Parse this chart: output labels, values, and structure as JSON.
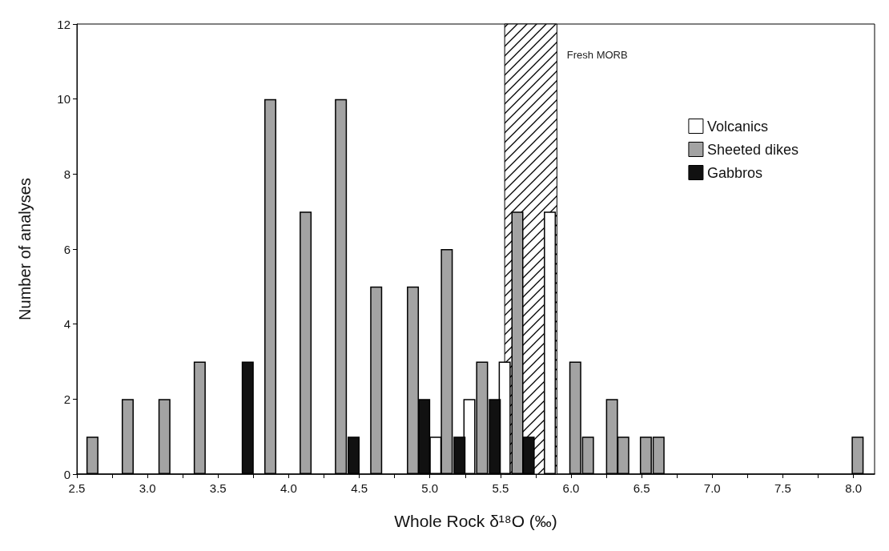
{
  "chart_data": {
    "type": "bar",
    "xlabel": "Whole Rock δ¹⁸O (‰)",
    "ylabel": "Number of analyses",
    "series": [
      {
        "name": "Volcanics",
        "color": "#ffffff",
        "x": [
          5.04,
          5.28,
          5.53,
          5.85
        ],
        "values": [
          1,
          2,
          3,
          7
        ]
      },
      {
        "name": "Sheeted dikes",
        "color": "#a3a3a3",
        "x": [
          2.61,
          2.86,
          3.12,
          3.37,
          3.87,
          4.12,
          4.37,
          4.62,
          4.88,
          5.12,
          5.37,
          5.62,
          6.03,
          6.12,
          6.29,
          6.37,
          6.53,
          6.62,
          8.03
        ],
        "values": [
          1,
          2,
          2,
          3,
          10,
          7,
          10,
          5,
          5,
          6,
          3,
          7,
          3,
          1,
          2,
          1,
          1,
          1,
          1
        ]
      },
      {
        "name": "Gabbros",
        "color": "#111111",
        "x": [
          3.71,
          4.46,
          4.96,
          5.21,
          5.46,
          5.7
        ],
        "values": [
          3,
          1,
          2,
          1,
          2,
          1
        ]
      }
    ],
    "bands": [
      {
        "axis": "x",
        "from": 5.53,
        "to": 5.9,
        "label": "Fresh MORB"
      }
    ],
    "xlim": [
      2.5,
      8.15
    ],
    "xticks": [
      2.5,
      {
        "value": 2.75,
        "label": null
      },
      {
        "value": 3,
        "label": "3.0"
      },
      {
        "value": 3.25,
        "label": null
      },
      3.5,
      {
        "value": 3.75,
        "label": null
      },
      {
        "value": 4,
        "label": "4.0"
      },
      {
        "value": 4.25,
        "label": null
      },
      4.5,
      {
        "value": 4.75,
        "label": null
      },
      {
        "value": 5,
        "label": "5.0"
      },
      {
        "value": 5.25,
        "label": null
      },
      5.5,
      {
        "value": 5.75,
        "label": null
      },
      {
        "value": 6,
        "label": "6.0"
      },
      {
        "value": 6.25,
        "label": null
      },
      6.5,
      {
        "value": 6.75,
        "label": null
      },
      {
        "value": 7,
        "label": "7.0"
      },
      {
        "value": 7.25,
        "label": null
      },
      7.5,
      {
        "value": 7.75,
        "label": null
      },
      {
        "value": 8,
        "label": "8.0"
      }
    ],
    "ylim": [
      0,
      12
    ],
    "yticks": [
      0,
      2,
      4,
      6,
      8,
      10,
      12
    ],
    "grid": false,
    "legend": "top right"
  }
}
